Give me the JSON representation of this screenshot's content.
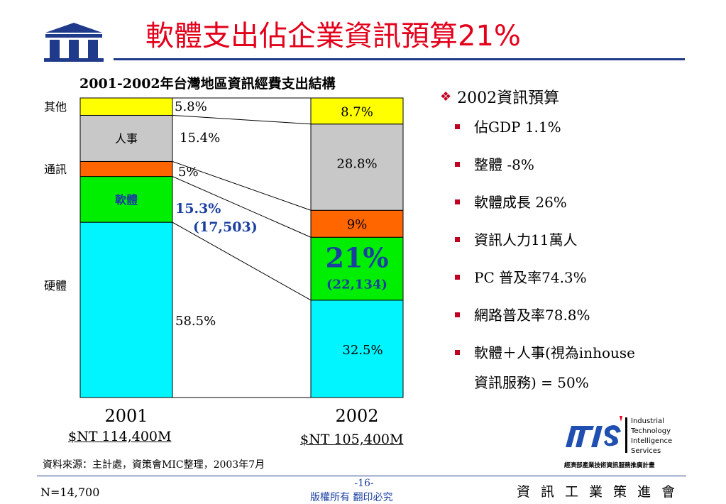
{
  "title": "軟體支出佔企業資訊預算21%",
  "chart_data": {
    "type": "bar",
    "subtype": "stacked-100",
    "title": "2001-2002年台灣地區資訊經費支出結構",
    "categories": [
      "2001",
      "2002"
    ],
    "totals": [
      "$NT 114,400M",
      "$NT 105,400M"
    ],
    "series": [
      {
        "name": "硬體",
        "color": "#00f5ff",
        "values": [
          58.5,
          32.5
        ],
        "labels": [
          "58.5%",
          "32.5%"
        ]
      },
      {
        "name": "軟體",
        "color": "#00ee00",
        "values": [
          15.3,
          21.0
        ],
        "labels": [
          "15.3%",
          "21%"
        ],
        "amounts": [
          "(17,503)",
          "(22,134)"
        ]
      },
      {
        "name": "通訊",
        "color": "#ff6600",
        "values": [
          5.0,
          9.0
        ],
        "labels": [
          "5%",
          "9%"
        ]
      },
      {
        "name": "人事",
        "color": "#c8c8c8",
        "values": [
          15.4,
          28.8
        ],
        "labels": [
          "15.4%",
          "28.8%"
        ]
      },
      {
        "name": "其他",
        "color": "#ffff00",
        "values": [
          5.8,
          8.7
        ],
        "labels": [
          "5.8%",
          "8.7%"
        ]
      }
    ],
    "ylim": [
      0,
      100
    ]
  },
  "bullets": {
    "header": "2002資訊預算",
    "items": [
      "佔GDP 1.1%",
      "整體 -8%",
      "軟體成長 26%",
      "資訊人力11萬人",
      "PC 普及率74.3%",
      "網路普及率78.8%"
    ],
    "last_line1": "軟體＋人事(視為inhouse",
    "last_line2": "資訊服務) = 50%"
  },
  "footer": {
    "source": "資料來源：主計處，資策會MIC整理，2003年7月",
    "n": "N=14,700",
    "page": "-16-",
    "copyright": "版權所有  翻印必究",
    "org": "資訊工業策進會"
  },
  "itis": {
    "lines": [
      "Industrial",
      "Technology",
      "Intelligence",
      "Services"
    ],
    "caption": "經濟部產業技術資訊服務推廣計畫",
    "mark": "ITIS"
  },
  "colors": {
    "title": "#e3001b",
    "accent_blue": "#1a3fa0",
    "bullet": "#c00020",
    "software_text": "#1a3fa0"
  }
}
